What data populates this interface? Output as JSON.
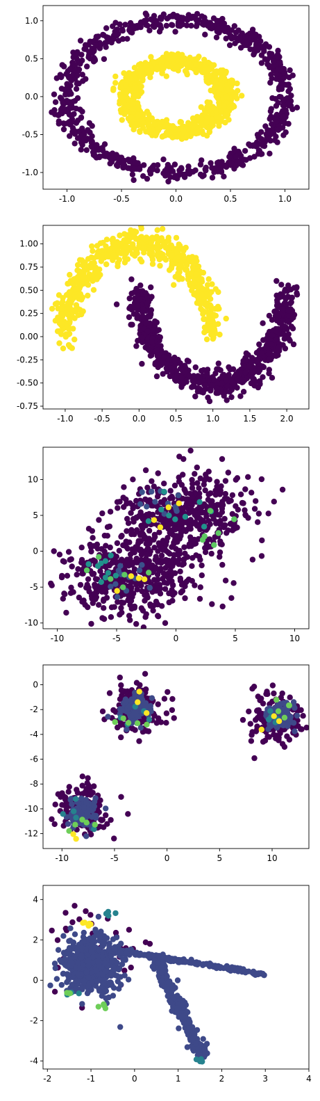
{
  "chart_data": [
    {
      "type": "scatter",
      "title": "",
      "xlabel": "",
      "ylabel": "",
      "xlim": [
        -1.22,
        1.22
      ],
      "ylim": [
        -1.22,
        1.2
      ],
      "xticks": [
        "-1.0",
        "-0.5",
        "0.0",
        "0.5",
        "1.0"
      ],
      "xtick_values": [
        -1.0,
        -0.5,
        0.0,
        0.5,
        1.0
      ],
      "yticks": [
        "1.0",
        "0.5",
        "0.0",
        "-0.5",
        "-1.0"
      ],
      "ytick_values": [
        1.0,
        0.5,
        0.0,
        -0.5,
        -1.0
      ],
      "grid": false,
      "series": [
        {
          "color": "#440154",
          "shape": {
            "kind": "ring",
            "cx": 0.0,
            "cy": 0.0,
            "r": 1.0,
            "noise": 0.06,
            "count": 750
          }
        },
        {
          "color": "#fde725",
          "shape": {
            "kind": "ring",
            "cx": 0.0,
            "cy": 0.0,
            "r": 0.45,
            "noise": 0.06,
            "count": 750
          }
        }
      ]
    },
    {
      "type": "scatter",
      "title": "",
      "xlabel": "",
      "ylabel": "",
      "xlim": [
        -1.3,
        2.3
      ],
      "ylim": [
        -0.78,
        1.2
      ],
      "xticks": [
        "-1.0",
        "-0.5",
        "0.0",
        "0.5",
        "1.0",
        "1.5",
        "2.0"
      ],
      "xtick_values": [
        -1.0,
        -0.5,
        0.0,
        0.5,
        1.0,
        1.5,
        2.0
      ],
      "yticks": [
        "1.00",
        "0.75",
        "0.50",
        "0.25",
        "0.00",
        "-0.25",
        "-0.50",
        "-0.75"
      ],
      "ytick_values": [
        1.0,
        0.75,
        0.5,
        0.25,
        0.0,
        -0.25,
        -0.5,
        -0.75
      ],
      "grid": false,
      "series": [
        {
          "color": "#fde725",
          "shape": {
            "kind": "moon-top",
            "cx": 0.0,
            "cy": 0.0,
            "r": 1.0,
            "noise": 0.08,
            "count": 600
          }
        },
        {
          "color": "#440154",
          "shape": {
            "kind": "moon-bottom",
            "cx": 1.0,
            "cy": 0.5,
            "r": 1.0,
            "noise": 0.08,
            "count": 700
          }
        }
      ]
    },
    {
      "type": "scatter",
      "title": "",
      "xlabel": "",
      "ylabel": "",
      "xlim": [
        -11.2,
        11.2
      ],
      "ylim": [
        -10.8,
        14.5
      ],
      "xticks": [
        "-10",
        "-5",
        "0",
        "5",
        "10"
      ],
      "xtick_values": [
        -10,
        -5,
        0,
        5,
        10
      ],
      "yticks": [
        "10",
        "5",
        "0",
        "-5",
        "-10"
      ],
      "ytick_values": [
        10,
        5,
        0,
        -5,
        -10
      ],
      "grid": false,
      "series": [
        {
          "color": "#440154",
          "shape": {
            "kind": "blobs",
            "centers": [
              [
                0.5,
                5.0
              ],
              [
                -4.0,
                -3.5
              ]
            ],
            "sx": 3.0,
            "sy": 3.0,
            "count": 900
          }
        },
        {
          "color": "#3b528b",
          "shape": {
            "kind": "blobs",
            "centers": [
              [
                -1.0,
                6.5
              ],
              [
                -4.0,
                -3.0
              ]
            ],
            "sx": 1.3,
            "sy": 1.3,
            "count": 25
          }
        },
        {
          "color": "#21918c",
          "shape": {
            "kind": "blobs",
            "centers": [
              [
                1.0,
                5.0
              ],
              [
                -5.5,
                -2.5
              ]
            ],
            "sx": 1.5,
            "sy": 1.5,
            "count": 18
          }
        },
        {
          "color": "#5ec962",
          "shape": {
            "kind": "blobs",
            "centers": [
              [
                2.0,
                2.0
              ],
              [
                -5.0,
                -4.0
              ]
            ],
            "sx": 1.6,
            "sy": 1.5,
            "count": 12
          }
        },
        {
          "color": "#fde725",
          "shape": {
            "kind": "blobs",
            "centers": [
              [
                -1.5,
                4.5
              ],
              [
                -3.5,
                -5.0
              ]
            ],
            "sx": 1.2,
            "sy": 1.2,
            "count": 8
          }
        }
      ]
    },
    {
      "type": "scatter",
      "title": "",
      "xlabel": "",
      "ylabel": "",
      "xlim": [
        -11.8,
        13.5
      ],
      "ylim": [
        -13.2,
        1.6
      ],
      "xticks": [
        "-10",
        "-5",
        "0",
        "5",
        "10"
      ],
      "xtick_values": [
        -10,
        -5,
        0,
        5,
        10
      ],
      "yticks": [
        "0",
        "-2",
        "-4",
        "-6",
        "-8",
        "-10",
        "-12"
      ],
      "ytick_values": [
        0,
        -2,
        -4,
        -6,
        -8,
        -10,
        -12
      ],
      "grid": false,
      "series": [
        {
          "color": "#440154",
          "shape": {
            "kind": "blobs",
            "centers": [
              [
                -3.0,
                -2.0
              ],
              [
                10.5,
                -2.8
              ],
              [
                -8.0,
                -10.0
              ]
            ],
            "sx": 1.2,
            "sy": 1.0,
            "count": 500
          }
        },
        {
          "color": "#3e4989",
          "shape": {
            "kind": "blobs",
            "centers": [
              [
                -3.0,
                -2.0
              ],
              [
                10.8,
                -2.6
              ],
              [
                -8.0,
                -10.3
              ]
            ],
            "sx": 0.7,
            "sy": 0.6,
            "count": 300
          }
        },
        {
          "color": "#26828e",
          "shape": {
            "kind": "blobs",
            "centers": [
              [
                -3.0,
                -2.5
              ],
              [
                10.0,
                -2.0
              ],
              [
                -8.5,
                -10.0
              ]
            ],
            "sx": 1.0,
            "sy": 0.9,
            "count": 15
          }
        },
        {
          "color": "#6ece58",
          "shape": {
            "kind": "blobs",
            "centers": [
              [
                -3.5,
                -3.2
              ],
              [
                11.5,
                -2.0
              ],
              [
                -8.0,
                -11.5
              ]
            ],
            "sx": 0.9,
            "sy": 0.5,
            "count": 15
          }
        },
        {
          "color": "#fde725",
          "shape": {
            "kind": "blobs",
            "centers": [
              [
                -2.0,
                -1.0
              ],
              [
                10.0,
                -3.0
              ],
              [
                -8.8,
                -11.8
              ]
            ],
            "sx": 0.6,
            "sy": 0.6,
            "count": 8
          }
        }
      ]
    },
    {
      "type": "scatter",
      "title": "",
      "xlabel": "",
      "ylabel": "",
      "xlim": [
        -2.1,
        4.0
      ],
      "ylim": [
        -4.4,
        4.7
      ],
      "xticks": [
        "-2",
        "-1",
        "0",
        "1",
        "2",
        "3",
        "4"
      ],
      "xtick_values": [
        -2,
        -1,
        0,
        1,
        2,
        3,
        4
      ],
      "yticks": [
        "4",
        "2",
        "0",
        "-2",
        "-4"
      ],
      "ytick_values": [
        4,
        2,
        0,
        -2,
        -4
      ],
      "grid": false,
      "series": [
        {
          "color": "#440154",
          "shape": {
            "kind": "blobs",
            "centers": [
              [
                -1.0,
                1.5
              ]
            ],
            "sx": 0.6,
            "sy": 1.1,
            "count": 45
          }
        },
        {
          "color": "#3e4989",
          "shape": {
            "kind": "blobs",
            "centers": [
              [
                -1.0,
                0.8
              ]
            ],
            "sx": 0.35,
            "sy": 0.7,
            "count": 600
          }
        },
        {
          "color": "#3e4989",
          "shape": {
            "kind": "line",
            "from": [
              -0.5,
              1.5
            ],
            "to": [
              3.0,
              0.3
            ],
            "noise": 0.05,
            "count": 250
          }
        },
        {
          "color": "#3e4989",
          "shape": {
            "kind": "line",
            "from": [
              0.5,
              1.0
            ],
            "to": [
              1.55,
              -3.8
            ],
            "noise": 0.08,
            "count": 250
          }
        },
        {
          "color": "#26828e",
          "shape": {
            "kind": "blobs",
            "centers": [
              [
                -0.65,
                3.3
              ],
              [
                1.5,
                -3.9
              ],
              [
                -1.45,
                -0.6
              ]
            ],
            "sx": 0.07,
            "sy": 0.08,
            "count": 12
          }
        },
        {
          "color": "#6ece58",
          "shape": {
            "kind": "blobs",
            "centers": [
              [
                -0.75,
                -1.3
              ],
              [
                -1.5,
                -0.55
              ]
            ],
            "sx": 0.04,
            "sy": 0.08,
            "count": 8
          }
        },
        {
          "color": "#fde725",
          "shape": {
            "kind": "blobs",
            "centers": [
              [
                -1.1,
                2.75
              ]
            ],
            "sx": 0.08,
            "sy": 0.06,
            "count": 6
          }
        }
      ]
    }
  ]
}
